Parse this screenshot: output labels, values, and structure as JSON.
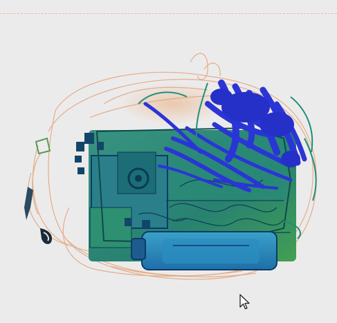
{
  "viewer": {
    "background": "#ecebeb",
    "palette": {
      "organic": "#e0a070",
      "mixed": "#1f8f7a",
      "metal_dense": "#2a35d6",
      "dark_edge": "#0c3a6a"
    },
    "icons": {
      "cursor": "mouse-pointer-icon"
    }
  }
}
